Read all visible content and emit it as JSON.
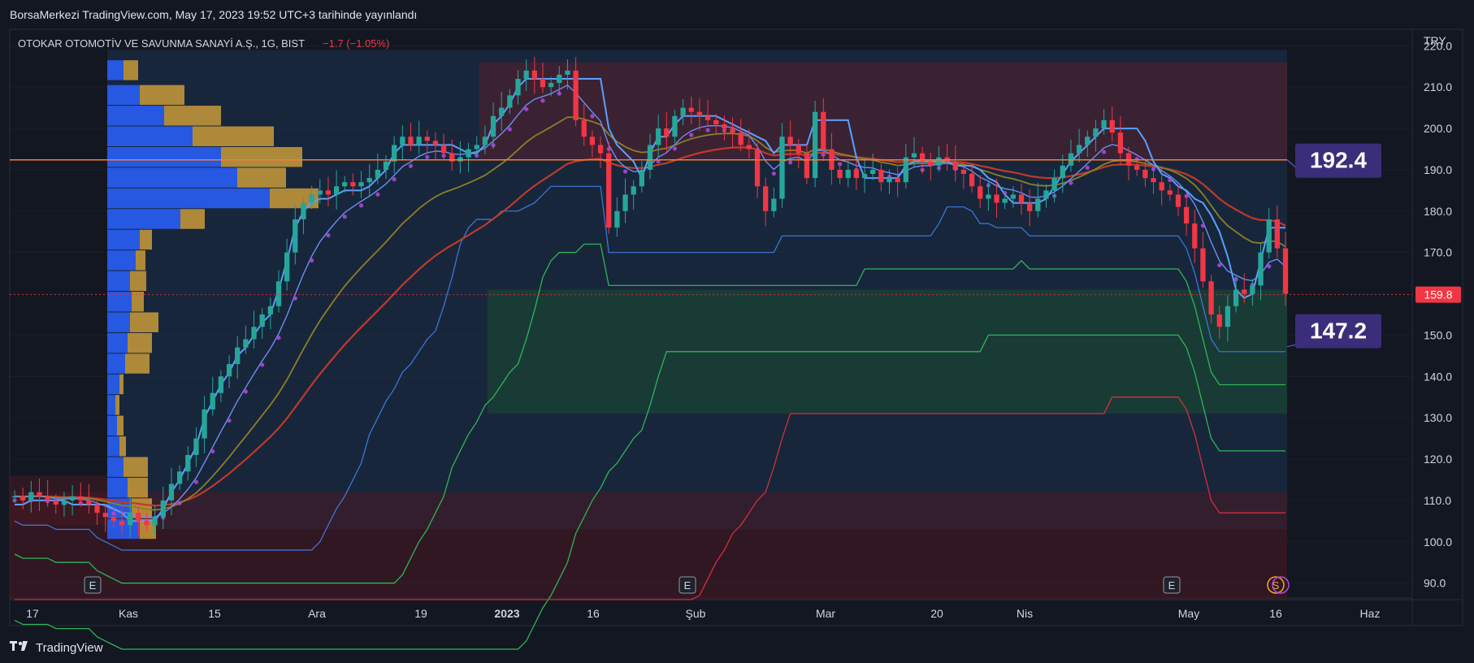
{
  "header": {
    "published": "BorsaMerkezi TradingView.com, May 17, 2023 19:52 UTC+3 tarihinde yayınlandı",
    "symbol": "OTOKAR OTOMOTİV VE SAVUNMA SANAYİ A.Ş., 1G, BIST",
    "change": "−1.7 (−1.05%)"
  },
  "currency": "TRY",
  "brand": {
    "name": "TradingView",
    "logo": "TV"
  },
  "colors": {
    "background": "#131722",
    "up": "#26a69a",
    "down": "#f23645",
    "profile_up": "#2962ff",
    "profile_down": "#d4a23a",
    "label_bg": "#3a2e7a",
    "resistance": "#f57c3a"
  },
  "chart_data": {
    "type": "candlestick",
    "y_range": [
      86,
      224
    ],
    "y_ticks": [
      220.0,
      210.0,
      200.0,
      190.0,
      180.0,
      170.0,
      160.0,
      150.0,
      140.0,
      130.0,
      120.0,
      110.0,
      100.0,
      90.0
    ],
    "x_ticks": [
      "17",
      "Kas",
      "15",
      "Ara",
      "19",
      "2023",
      "16",
      "Şub",
      "Mar",
      "20",
      "Nis",
      "May",
      "16",
      "Haz"
    ],
    "last_price": "159.8",
    "last_value": 159.8,
    "levels": [
      {
        "label": "192.4",
        "value": 192.4
      },
      {
        "label": "147.2",
        "value": 147.2
      }
    ],
    "event_markers": [
      "E",
      "E",
      "E",
      "S"
    ],
    "closes": [
      111,
      110,
      112,
      111,
      110,
      109,
      110,
      111,
      110,
      109,
      107,
      106,
      105,
      104,
      107,
      105,
      104,
      106,
      110,
      114,
      117,
      121,
      125,
      132,
      136,
      140,
      143,
      147,
      149,
      152,
      155,
      157,
      163,
      170,
      178,
      182,
      184,
      185,
      184,
      186,
      187,
      186,
      187,
      188,
      190,
      192,
      196,
      198,
      196,
      198,
      197,
      196,
      194,
      192,
      193,
      195,
      196,
      198,
      203,
      205,
      208,
      212,
      214,
      212,
      210,
      211,
      213,
      214,
      202,
      198,
      196,
      194,
      176,
      180,
      184,
      186,
      190,
      196,
      200,
      198,
      203,
      205,
      204,
      203,
      202,
      201,
      200,
      199,
      196,
      195,
      186,
      180,
      183,
      198,
      196,
      194,
      188,
      204,
      195,
      190,
      188,
      190,
      188,
      189,
      190,
      187,
      188,
      187,
      193,
      194,
      192,
      191,
      193,
      192,
      190,
      189,
      186,
      183,
      184,
      182,
      183,
      184,
      182,
      180,
      183,
      185,
      188,
      191,
      194,
      196,
      198,
      200,
      202,
      199,
      194,
      191,
      190,
      188,
      187,
      185,
      184,
      181,
      177,
      171,
      163,
      155,
      152,
      157,
      161,
      160,
      162,
      170,
      178,
      171,
      160
    ]
  }
}
